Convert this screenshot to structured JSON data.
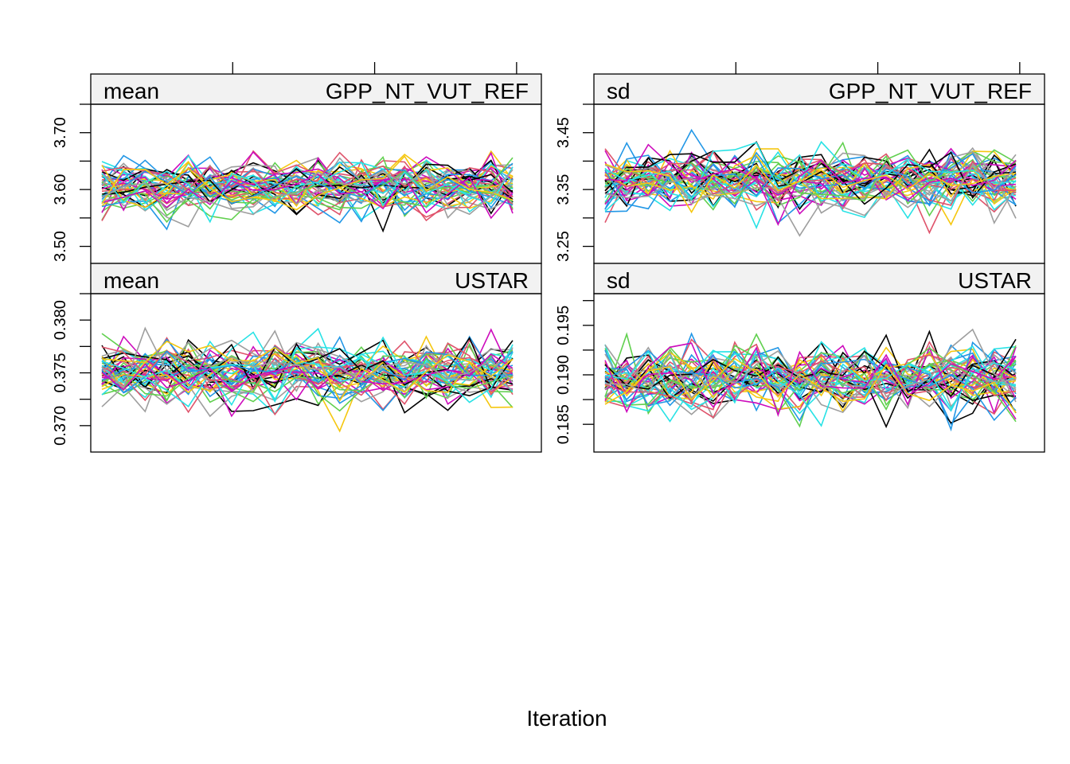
{
  "chart_data": {
    "type": "line",
    "xlabel": "Iteration",
    "series_colors": [
      "#000000",
      "#DF536B",
      "#61D04F",
      "#2297E6",
      "#28E2E5",
      "#CD0BBC",
      "#F5C710",
      "#9E9E9E"
    ],
    "n_chains": 48,
    "n_iterations": 20,
    "x_range": [
      1,
      20
    ],
    "panels": [
      {
        "stat": "mean",
        "variable": "GPP_NT_VUT_REF",
        "ylim": [
          3.47,
          3.75
        ],
        "yticks": [
          3.5,
          3.6,
          3.7
        ],
        "ytick_labels": [
          "3.50",
          "3.60",
          "3.70"
        ],
        "center": 3.605,
        "spread": 0.022
      },
      {
        "stat": "sd",
        "variable": "GPP_NT_VUT_REF",
        "ylim": [
          3.22,
          3.5
        ],
        "yticks": [
          3.25,
          3.35,
          3.45
        ],
        "ytick_labels": [
          "3.25",
          "3.35",
          "3.45"
        ],
        "center": 3.365,
        "spread": 0.025
      },
      {
        "stat": "mean",
        "variable": "USTAR",
        "ylim": [
          0.3675,
          0.3825
        ],
        "yticks": [
          0.37,
          0.375,
          0.38
        ],
        "ytick_labels": [
          "0.370",
          "0.375",
          "0.380"
        ],
        "center": 0.375,
        "spread": 0.0013
      },
      {
        "stat": "sd",
        "variable": "USTAR",
        "ylim": [
          0.1822,
          0.1982
        ],
        "yticks": [
          0.185,
          0.19,
          0.195
        ],
        "ytick_labels": [
          "0.185",
          "0.190",
          "0.195"
        ],
        "center": 0.1895,
        "spread": 0.0016
      }
    ]
  }
}
